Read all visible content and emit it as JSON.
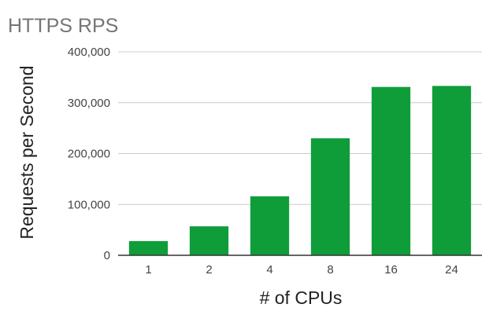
{
  "chart_data": {
    "type": "bar",
    "title": "HTTPS RPS",
    "xlabel": "# of CPUs",
    "ylabel": "Requests per Second",
    "categories": [
      "1",
      "2",
      "4",
      "8",
      "16",
      "24"
    ],
    "values": [
      28000,
      57000,
      116000,
      230000,
      331000,
      333000
    ],
    "ylim": [
      0,
      400000
    ],
    "yticks": [
      0,
      100000,
      200000,
      300000,
      400000
    ],
    "ytick_labels": [
      "0",
      "100,000",
      "200,000",
      "300,000",
      "400,000"
    ],
    "grid": true,
    "legend": "none",
    "bar_color": "#0f9d3a"
  }
}
